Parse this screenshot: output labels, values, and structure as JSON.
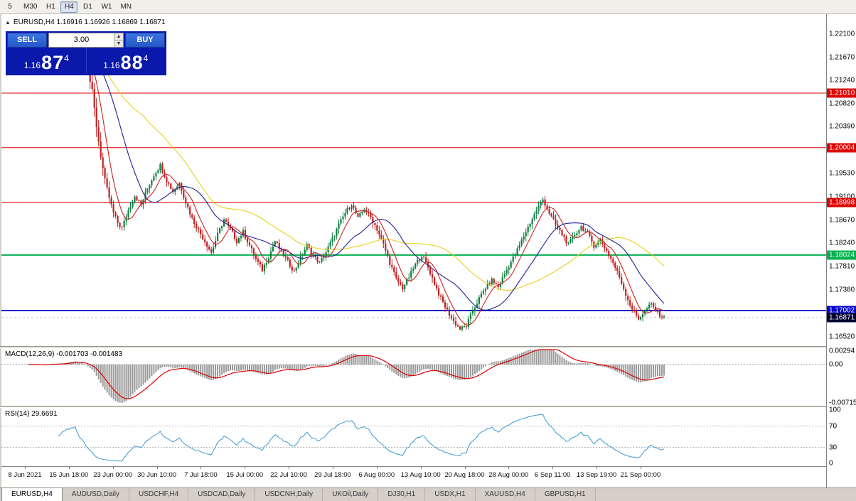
{
  "toolbar": {
    "timeframes": [
      {
        "label": "5",
        "active": false
      },
      {
        "label": "M30",
        "active": false
      },
      {
        "label": "H1",
        "active": false
      },
      {
        "label": "H4",
        "active": true
      },
      {
        "label": "D1",
        "active": false
      },
      {
        "label": "W1",
        "active": false
      },
      {
        "label": "MN",
        "active": false
      }
    ]
  },
  "chart_header": {
    "icon": "▲",
    "text": "EURUSD,H4 1.16916 1.16926 1.16869 1.16871"
  },
  "trade_panel": {
    "sell_label": "SELL",
    "buy_label": "BUY",
    "volume": "3.00",
    "spin_up_icon": "▲",
    "spin_down_icon": "▼",
    "bid_prefix": "1.16",
    "bid_big": "87",
    "bid_sup": "4",
    "ask_prefix": "1.16",
    "ask_big": "88",
    "ask_sup": "4"
  },
  "price_scale_labels": [
    "1.22100",
    "1.21670",
    "1.21240",
    "1.20820",
    "1.20390",
    "1.19960",
    "1.19530",
    "1.19100",
    "1.18670",
    "1.18240",
    "1.17810",
    "1.17380",
    "1.16950",
    "1.16520"
  ],
  "hlines": [
    {
      "price": 1.2101,
      "label": "1.21010",
      "color": "#dd0000",
      "width": 1
    },
    {
      "price": 1.20004,
      "label": "1.20004",
      "color": "#dd0000",
      "width": 1
    },
    {
      "price": 1.18998,
      "label": "1.18998",
      "color": "#dd0000",
      "width": 1
    },
    {
      "price": 1.18024,
      "label": "1.18024",
      "color": "#00b050",
      "width": 2
    },
    {
      "price": 1.17002,
      "label": "1.17002",
      "color": "#0000cc",
      "width": 2
    }
  ],
  "current_price": {
    "label": "1.16871",
    "price": 1.16871,
    "bg": "#00002f"
  },
  "macd": {
    "label": "MACD(12,26,9) -0.001703 -0.001483",
    "scale_labels": [
      "0.00294",
      "0.00",
      "-0.00715"
    ],
    "histogram_color": "#9a9a9a",
    "signal_color": "#dd0000"
  },
  "rsi": {
    "label": "RSI(14) 29.6691",
    "scale_labels": [
      "100",
      "70",
      "30",
      "0"
    ],
    "levels": [
      70,
      30
    ],
    "line_color": "#3b97d3"
  },
  "time_axis": [
    "8 Jun 2021",
    "15 Jun 18:00",
    "23 Jun 00:00",
    "30 Jun 10:00",
    "7 Jul 18:00",
    "15 Jul 00:00",
    "22 Jul 10:00",
    "29 Jul 18:00",
    "6 Aug 00:00",
    "13 Aug 10:00",
    "20 Aug 18:00",
    "28 Aug 00:00",
    "6 Sep 11:00",
    "13 Sep 19:00",
    "21 Sep 00:00"
  ],
  "tabs": [
    {
      "label": "EURUSD,H4",
      "active": true
    },
    {
      "label": "AUDUSD,Daily",
      "active": false
    },
    {
      "label": "USDCHF,H4",
      "active": false
    },
    {
      "label": "USDCAD,Daily",
      "active": false
    },
    {
      "label": "USDCNH,Daily",
      "active": false
    },
    {
      "label": "UKOil,Daily",
      "active": false
    },
    {
      "label": "DJ30,H1",
      "active": false
    },
    {
      "label": "USDX,H1",
      "active": false
    },
    {
      "label": "XAUUSD,H4",
      "active": false
    },
    {
      "label": "GBPUSD,H1",
      "active": false
    }
  ],
  "chart_data": {
    "type": "candlestick",
    "symbol": "EURUSD",
    "timeframe": "H4",
    "ohlc_header": {
      "open": 1.16916,
      "high": 1.16926,
      "low": 1.16869,
      "close": 1.16871
    },
    "visible_price_range": [
      1.1633,
      1.2246
    ],
    "count": 300,
    "up_color": "#108040",
    "down_color": "#c02020",
    "price_anchors": [
      [
        0,
        1.2172
      ],
      [
        6,
        1.216
      ],
      [
        10,
        1.218
      ],
      [
        14,
        1.2168
      ],
      [
        18,
        1.2188
      ],
      [
        22,
        1.2195
      ],
      [
        26,
        1.2165
      ],
      [
        28,
        1.214
      ],
      [
        30,
        1.2105
      ],
      [
        32,
        1.204
      ],
      [
        34,
        1.1985
      ],
      [
        36,
        1.194
      ],
      [
        38,
        1.1908
      ],
      [
        40,
        1.188
      ],
      [
        42,
        1.1862
      ],
      [
        44,
        1.1852
      ],
      [
        47,
        1.1885
      ],
      [
        50,
        1.1912
      ],
      [
        53,
        1.1895
      ],
      [
        56,
        1.1925
      ],
      [
        59,
        1.195
      ],
      [
        62,
        1.1968
      ],
      [
        65,
        1.194
      ],
      [
        68,
        1.192
      ],
      [
        71,
        1.1935
      ],
      [
        74,
        1.19
      ],
      [
        77,
        1.187
      ],
      [
        80,
        1.1848
      ],
      [
        83,
        1.1828
      ],
      [
        86,
        1.1807
      ],
      [
        89,
        1.184
      ],
      [
        92,
        1.1868
      ],
      [
        95,
        1.185
      ],
      [
        98,
        1.1828
      ],
      [
        101,
        1.1845
      ],
      [
        104,
        1.182
      ],
      [
        107,
        1.1795
      ],
      [
        110,
        1.1775
      ],
      [
        113,
        1.18
      ],
      [
        116,
        1.1828
      ],
      [
        119,
        1.1808
      ],
      [
        122,
        1.179
      ],
      [
        125,
        1.1772
      ],
      [
        128,
        1.1798
      ],
      [
        131,
        1.182
      ],
      [
        134,
        1.18
      ],
      [
        137,
        1.1788
      ],
      [
        140,
        1.1808
      ],
      [
        143,
        1.1832
      ],
      [
        146,
        1.1858
      ],
      [
        149,
        1.188
      ],
      [
        152,
        1.1897
      ],
      [
        155,
        1.187
      ],
      [
        158,
        1.1888
      ],
      [
        161,
        1.1872
      ],
      [
        164,
        1.185
      ],
      [
        167,
        1.1822
      ],
      [
        170,
        1.1788
      ],
      [
        173,
        1.1758
      ],
      [
        176,
        1.1742
      ],
      [
        179,
        1.1762
      ],
      [
        182,
        1.1785
      ],
      [
        185,
        1.1803
      ],
      [
        188,
        1.178
      ],
      [
        191,
        1.175
      ],
      [
        194,
        1.1722
      ],
      [
        197,
        1.17
      ],
      [
        200,
        1.168
      ],
      [
        203,
        1.1666
      ],
      [
        206,
        1.1672
      ],
      [
        209,
        1.17
      ],
      [
        212,
        1.1722
      ],
      [
        215,
        1.1742
      ],
      [
        218,
        1.1756
      ],
      [
        221,
        1.1744
      ],
      [
        224,
        1.1768
      ],
      [
        227,
        1.179
      ],
      [
        230,
        1.1812
      ],
      [
        233,
        1.1838
      ],
      [
        236,
        1.1862
      ],
      [
        239,
        1.1885
      ],
      [
        242,
        1.1905
      ],
      [
        245,
        1.188
      ],
      [
        248,
        1.1858
      ],
      [
        251,
        1.184
      ],
      [
        254,
        1.1822
      ],
      [
        257,
        1.184
      ],
      [
        260,
        1.1855
      ],
      [
        263,
        1.1842
      ],
      [
        266,
        1.182
      ],
      [
        269,
        1.183
      ],
      [
        272,
        1.181
      ],
      [
        275,
        1.1788
      ],
      [
        278,
        1.1762
      ],
      [
        281,
        1.173
      ],
      [
        284,
        1.1702
      ],
      [
        287,
        1.1685
      ],
      [
        290,
        1.17
      ],
      [
        293,
        1.1712
      ],
      [
        296,
        1.1695
      ],
      [
        299,
        1.1687
      ]
    ],
    "moving_averages": [
      {
        "period": 55,
        "color": "#e8cf20"
      },
      {
        "period": 24,
        "color": "#202095"
      },
      {
        "period": 8,
        "color": "#cc2020"
      }
    ]
  }
}
